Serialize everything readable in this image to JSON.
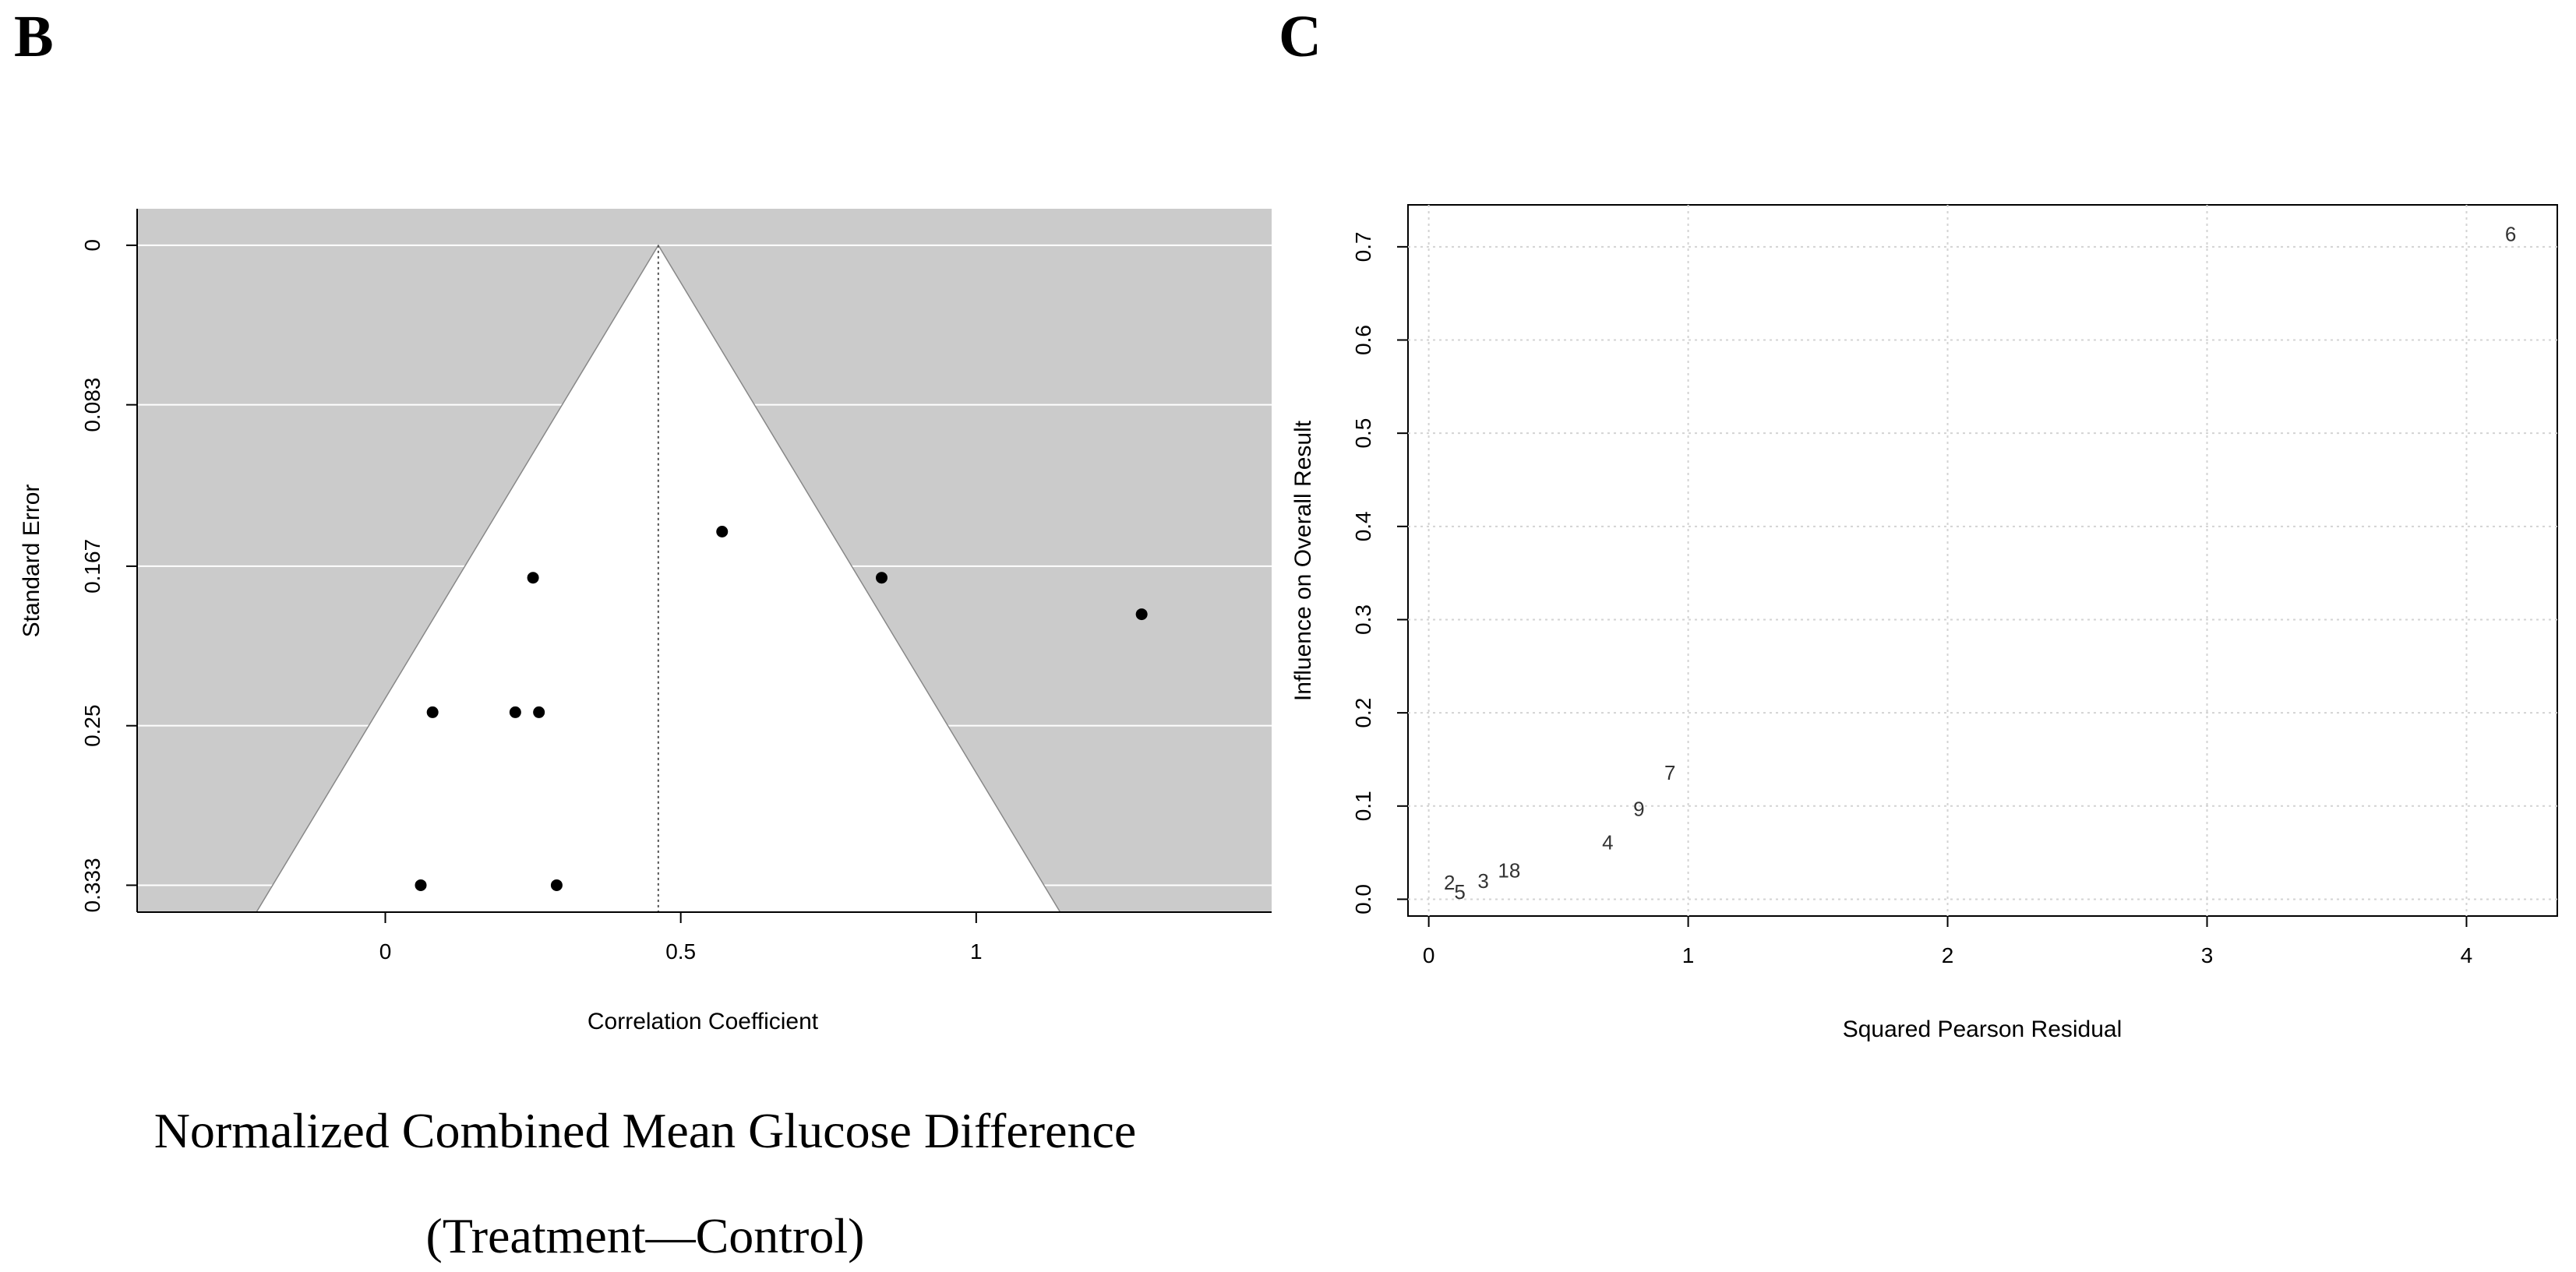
{
  "figure": {
    "caption_line1": "Normalized Combined Mean Glucose Difference",
    "caption_line2": "(Treatment—Control)"
  },
  "chart_data": [
    {
      "panel": "B",
      "type": "scatter",
      "subtype": "funnel-plot",
      "title": "",
      "xlabel": "Correlation Coefficient",
      "ylabel": "Standard Error",
      "xlim": [
        -0.42,
        1.5
      ],
      "ylim": [
        0.347,
        -0.019
      ],
      "y_inverted": true,
      "xticks": [
        0,
        0.5,
        1
      ],
      "xtick_labels": [
        "0",
        "0.5",
        "1"
      ],
      "yticks": [
        0,
        0.083,
        0.167,
        0.25,
        0.333
      ],
      "ytick_labels": [
        "0",
        "0.083",
        "0.167",
        "0.25",
        "0.333"
      ],
      "funnel_apex_x": 0.462,
      "funnel_se_max": 0.347,
      "background_color": "#cbcbcb",
      "funnel_color": "#ffffff",
      "points": [
        {
          "x": 0.57,
          "y": 0.149
        },
        {
          "x": 0.25,
          "y": 0.173
        },
        {
          "x": 0.84,
          "y": 0.173
        },
        {
          "x": 1.28,
          "y": 0.192
        },
        {
          "x": 0.08,
          "y": 0.243
        },
        {
          "x": 0.22,
          "y": 0.243
        },
        {
          "x": 0.26,
          "y": 0.243
        },
        {
          "x": 0.06,
          "y": 0.333
        },
        {
          "x": 0.29,
          "y": 0.333
        }
      ]
    },
    {
      "panel": "C",
      "type": "scatter",
      "subtype": "labelled-text-points",
      "title": "",
      "xlabel": "Squared Pearson Residual",
      "ylabel": "Influence on Overall Result",
      "xlim": [
        -0.08,
        4.35
      ],
      "ylim": [
        -0.018,
        0.745
      ],
      "grid": true,
      "xticks": [
        0,
        1,
        2,
        3,
        4
      ],
      "xtick_labels": [
        "0",
        "1",
        "2",
        "3",
        "4"
      ],
      "yticks": [
        0.0,
        0.1,
        0.2,
        0.3,
        0.4,
        0.5,
        0.6,
        0.7
      ],
      "ytick_labels": [
        "0.0",
        "0.1",
        "0.2",
        "0.3",
        "0.4",
        "0.5",
        "0.6",
        "0.7"
      ],
      "points": [
        {
          "label": "6",
          "x": 4.17,
          "y": 0.712
        },
        {
          "label": "7",
          "x": 0.93,
          "y": 0.134
        },
        {
          "label": "9",
          "x": 0.81,
          "y": 0.095
        },
        {
          "label": "4",
          "x": 0.69,
          "y": 0.059
        },
        {
          "label": "18",
          "x": 0.31,
          "y": 0.029
        },
        {
          "label": "3",
          "x": 0.21,
          "y": 0.018
        },
        {
          "label": "2",
          "x": 0.08,
          "y": 0.016
        },
        {
          "label": "5",
          "x": 0.12,
          "y": 0.006
        }
      ]
    }
  ]
}
